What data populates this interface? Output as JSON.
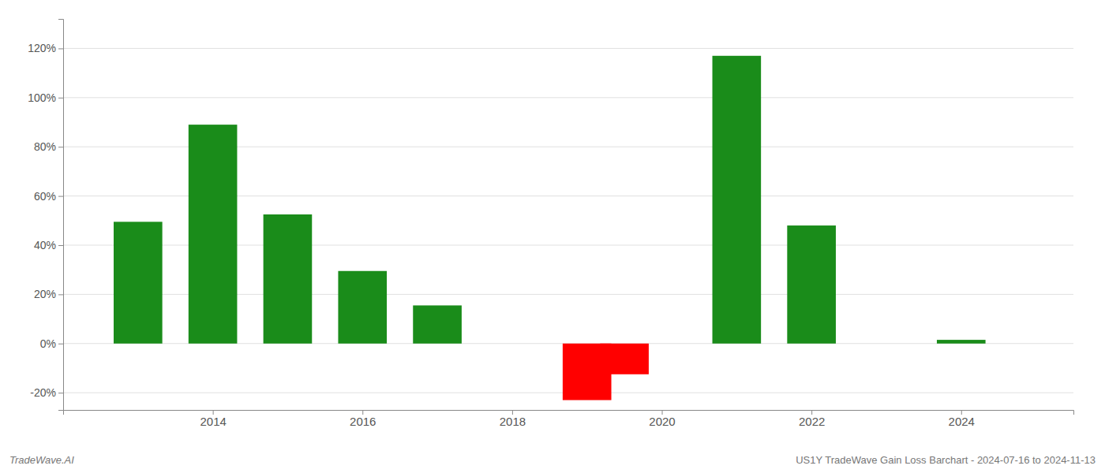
{
  "chart_data": {
    "type": "bar",
    "x": [
      2013,
      2014,
      2015,
      2016,
      2017,
      2019,
      2019.5,
      2021,
      2022,
      2024
    ],
    "values": [
      49.5,
      89.0,
      52.5,
      29.5,
      15.5,
      -23.0,
      -12.5,
      117.0,
      48.0,
      1.5
    ],
    "colors": [
      "#1a8c1a",
      "#1a8c1a",
      "#1a8c1a",
      "#1a8c1a",
      "#1a8c1a",
      "#ff0000",
      "#ff0000",
      "#1a8c1a",
      "#1a8c1a",
      "#1a8c1a"
    ],
    "xlim": [
      2012.0,
      2025.5
    ],
    "xticks": [
      2014,
      2016,
      2018,
      2020,
      2022,
      2024
    ],
    "ylim": [
      -27,
      132
    ],
    "yticks": [
      {
        "value": -20,
        "label": "-20%"
      },
      {
        "value": 0,
        "label": "0%"
      },
      {
        "value": 20,
        "label": "20%"
      },
      {
        "value": 40,
        "label": "40%"
      },
      {
        "value": 60,
        "label": "60%"
      },
      {
        "value": 80,
        "label": "80%"
      },
      {
        "value": 100,
        "label": "100%"
      },
      {
        "value": 120,
        "label": "120%"
      }
    ],
    "grid": true,
    "annotations": [
      "TradeWave.AI",
      "US1Y TradeWave Gain Loss Barchart - 2024-07-16 to 2024-11-13"
    ]
  }
}
